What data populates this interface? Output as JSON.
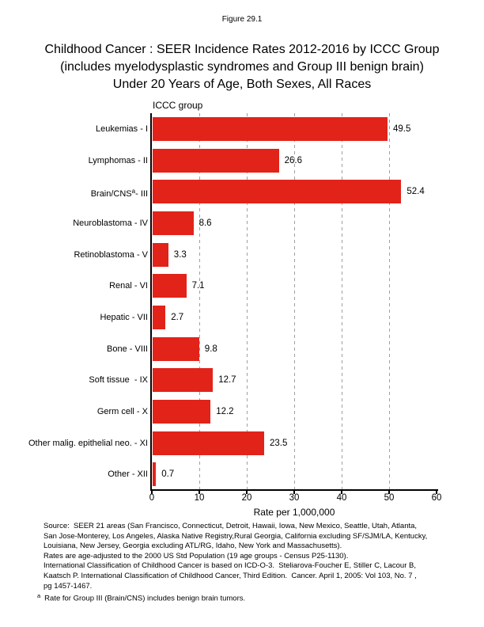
{
  "figure_label": "Figure 29.1",
  "title": {
    "line1": "Childhood Cancer : SEER Incidence Rates 2012-2016 by ICCC Group",
    "line2": "(includes myelodysplastic syndromes and Group III benign brain)",
    "line3": "Under 20 Years of Age, Both Sexes, All Races"
  },
  "chart_data": {
    "type": "bar",
    "orientation": "horizontal",
    "ylabel": "ICCC group",
    "xlabel": "Rate per 1,000,000",
    "xlim": [
      0,
      60
    ],
    "xticks": [
      "0",
      "10",
      "20",
      "30",
      "40",
      "50",
      "60"
    ],
    "gridlines": [
      10,
      20,
      30,
      40,
      50
    ],
    "grid_style": "dashed-vertical",
    "bar_color": "#e2231a",
    "gridline_color": "#a0a0a0",
    "axis_color": "#000000",
    "categories": [
      {
        "pre": "Leukemias - I",
        "sup": "",
        "post": ""
      },
      {
        "pre": "Lymphomas - II",
        "sup": "",
        "post": ""
      },
      {
        "pre": "Brain/CNS",
        "sup": "a",
        "post": "- III"
      },
      {
        "pre": "Neuroblastoma - IV",
        "sup": "",
        "post": ""
      },
      {
        "pre": "Retinoblastoma - V",
        "sup": "",
        "post": ""
      },
      {
        "pre": "Renal - VI",
        "sup": "",
        "post": ""
      },
      {
        "pre": "Hepatic - VII",
        "sup": "",
        "post": ""
      },
      {
        "pre": "Bone - VIII",
        "sup": "",
        "post": ""
      },
      {
        "pre": "Soft tissue  - IX",
        "sup": "",
        "post": ""
      },
      {
        "pre": "Germ cell - X",
        "sup": "",
        "post": ""
      },
      {
        "pre": "Other malig. epithelial neo. - XI",
        "sup": "",
        "post": ""
      },
      {
        "pre": "Other - XII",
        "sup": "",
        "post": ""
      }
    ],
    "values": [
      49.5,
      26.6,
      52.4,
      8.6,
      3.3,
      7.1,
      2.7,
      9.8,
      12.7,
      12.2,
      23.5,
      0.7
    ],
    "value_labels": [
      "49.5",
      "26.6",
      "52.4",
      "8.6",
      "3.3",
      "7.1",
      "2.7",
      "9.8",
      "12.7",
      "12.2",
      "23.5",
      "0.7"
    ]
  },
  "footer": {
    "source_lines": [
      "Source:  SEER 21 areas (San Francisco, Connecticut, Detroit, Hawaii, Iowa, New Mexico, Seattle, Utah, Atlanta,",
      "San Jose-Monterey, Los Angeles, Alaska Native Registry,Rural Georgia, California excluding SF/SJM/LA, Kentucky,",
      "Louisiana, New Jersey, Georgia excluding ATL/RG, Idaho, New York and Massachusetts).",
      "Rates are age-adjusted to the 2000 US Std Population (19 age groups - Census P25-1130).",
      "International Classification of Childhood Cancer is based on ICD-O-3.  Steliarova-Foucher E, Stiller C, Lacour B,",
      "Kaatsch P. International Classification of Childhood Cancer, Third Edition.  Cancer. April 1, 2005: Vol 103, No. 7 ,",
      "pg 1457-1467."
    ],
    "footnote": {
      "sup": "a",
      "text": "Rate for Group III (Brain/CNS) includes benign brain tumors."
    }
  }
}
